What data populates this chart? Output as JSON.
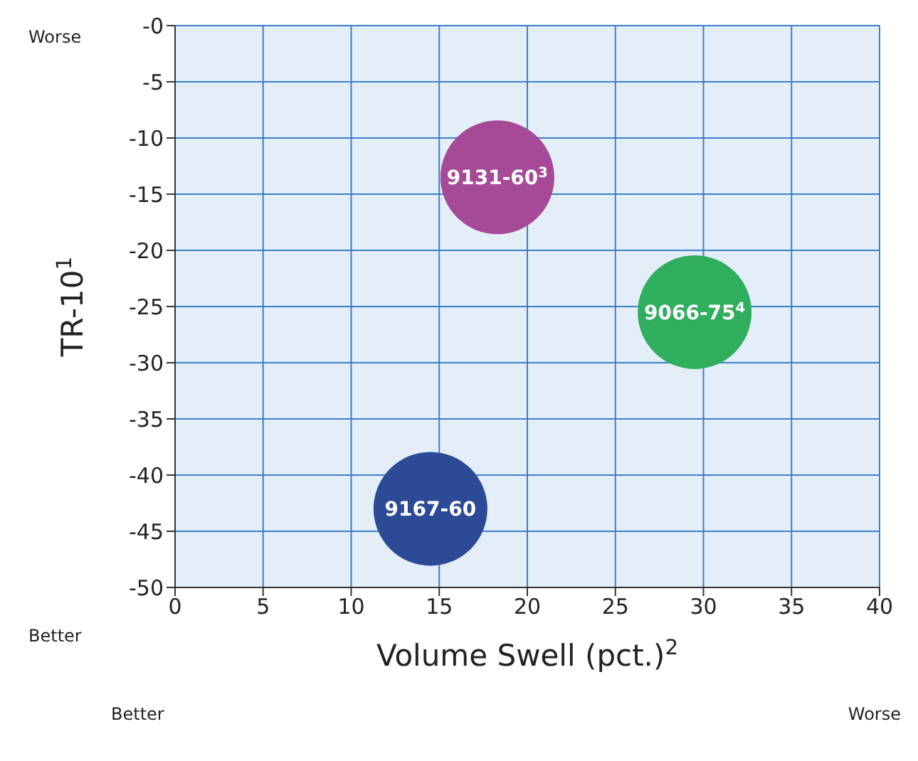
{
  "chart_data": {
    "type": "scatter",
    "xlabel": "Volume Swell (pct.)$^{2}$",
    "ylabel": "TR-10$^{1}$",
    "xlim": [
      0,
      40
    ],
    "xticks": [
      0,
      5,
      10,
      15,
      20,
      25,
      30,
      35,
      40
    ],
    "ylim": [
      -50,
      0
    ],
    "yticks": [
      {
        "value": 0,
        "label": "-0"
      },
      -5,
      -10,
      -15,
      -20,
      -25,
      -30,
      -35,
      -40,
      -45,
      -50
    ],
    "grid": true,
    "marker": "circle",
    "series": [
      {
        "name": "9131-60$^{3}$",
        "color": "#a64a97",
        "x": [
          18.3
        ],
        "values": [
          -13.5
        ]
      },
      {
        "name": "9066-75$^{4}$",
        "color": "#2fae5e",
        "x": [
          29.5
        ],
        "values": [
          -25.5
        ]
      },
      {
        "name": "9167-60",
        "color": "#2c4a96",
        "x": [
          14.5
        ],
        "values": [
          -43
        ]
      }
    ],
    "annotations": [
      "Worse",
      "Better",
      "Better",
      "Worse"
    ]
  }
}
